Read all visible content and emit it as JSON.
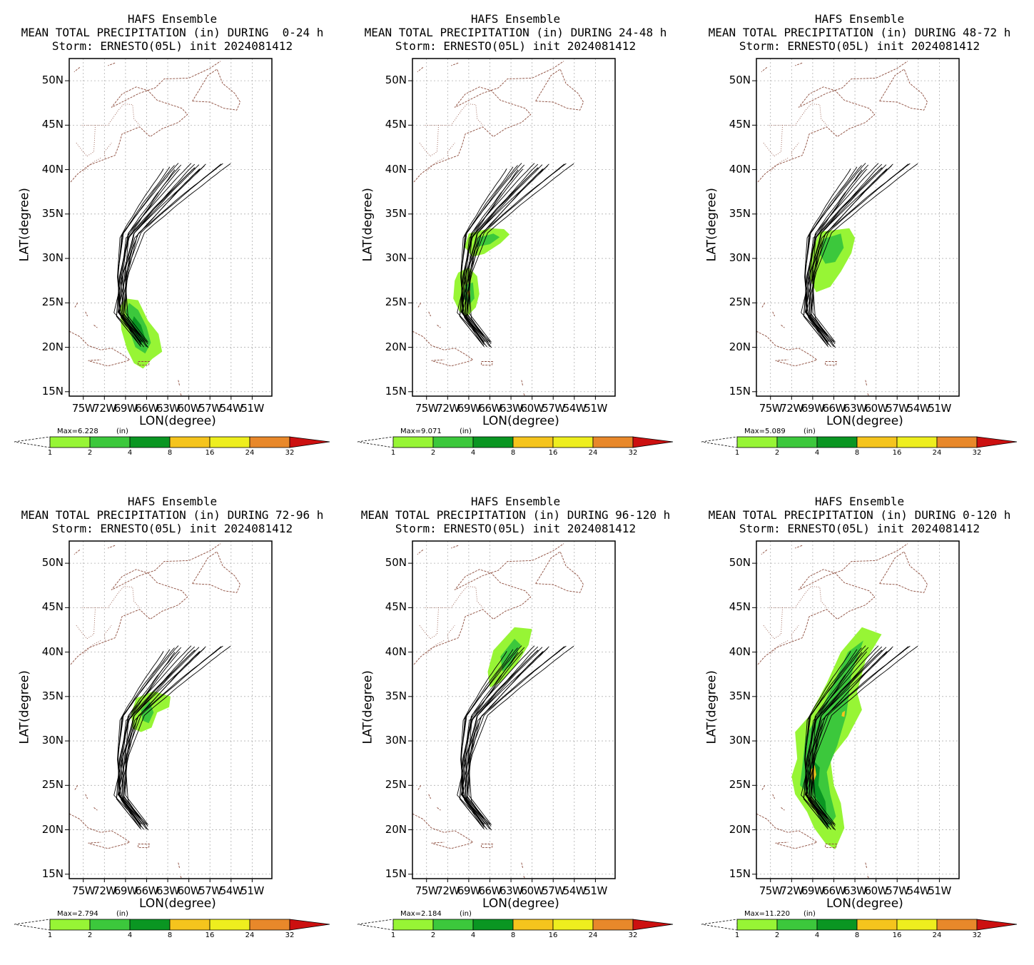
{
  "colorbar": {
    "labels": [
      "1",
      "2",
      "4",
      "8",
      "16",
      "24",
      "32"
    ],
    "colors": [
      "#97f535",
      "#3cc83c",
      "#0a9622",
      "#f5c41d",
      "#eeee1e",
      "#e8882a",
      "#cc1010"
    ]
  },
  "axes": {
    "lat_ticks": [
      "15N",
      "20N",
      "25N",
      "30N",
      "35N",
      "40N",
      "45N",
      "50N"
    ],
    "lon_ticks": [
      "75W",
      "72W",
      "69W",
      "66W",
      "63W",
      "60W",
      "57W",
      "54W",
      "51W"
    ],
    "xlabel": "LON(degree)",
    "ylabel": "LAT(degree)"
  },
  "panels": [
    {
      "title1": "HAFS Ensemble",
      "title2": "MEAN TOTAL PRECIPITATION (in) DURING  0-24 h",
      "title3": "Storm: ERNESTO(05L) init 2024081412",
      "max": "Max=6.228",
      "unit": "(in)"
    },
    {
      "title1": "HAFS Ensemble",
      "title2": "MEAN TOTAL PRECIPITATION (in) DURING 24-48 h",
      "title3": "Storm: ERNESTO(05L) init 2024081412",
      "max": "Max=9.071",
      "unit": "(in)"
    },
    {
      "title1": "HAFS Ensemble",
      "title2": "MEAN TOTAL PRECIPITATION (in) DURING 48-72 h",
      "title3": "Storm: ERNESTO(05L) init 2024081412",
      "max": "Max=5.089",
      "unit": "(in)"
    },
    {
      "title1": "HAFS Ensemble",
      "title2": "MEAN TOTAL PRECIPITATION (in) DURING 72-96 h",
      "title3": "Storm: ERNESTO(05L) init 2024081412",
      "max": "Max=2.794",
      "unit": "(in)"
    },
    {
      "title1": "HAFS Ensemble",
      "title2": "MEAN TOTAL PRECIPITATION (in) DURING 96-120 h",
      "title3": "Storm: ERNESTO(05L) init 2024081412",
      "max": "Max=2.184",
      "unit": "(in)"
    },
    {
      "title1": "HAFS Ensemble",
      "title2": "MEAN TOTAL PRECIPITATION (in) DURING 0-120 h",
      "title3": "Storm: ERNESTO(05L) init 2024081412",
      "max": "Max=11.220",
      "unit": "(in)"
    }
  ]
}
